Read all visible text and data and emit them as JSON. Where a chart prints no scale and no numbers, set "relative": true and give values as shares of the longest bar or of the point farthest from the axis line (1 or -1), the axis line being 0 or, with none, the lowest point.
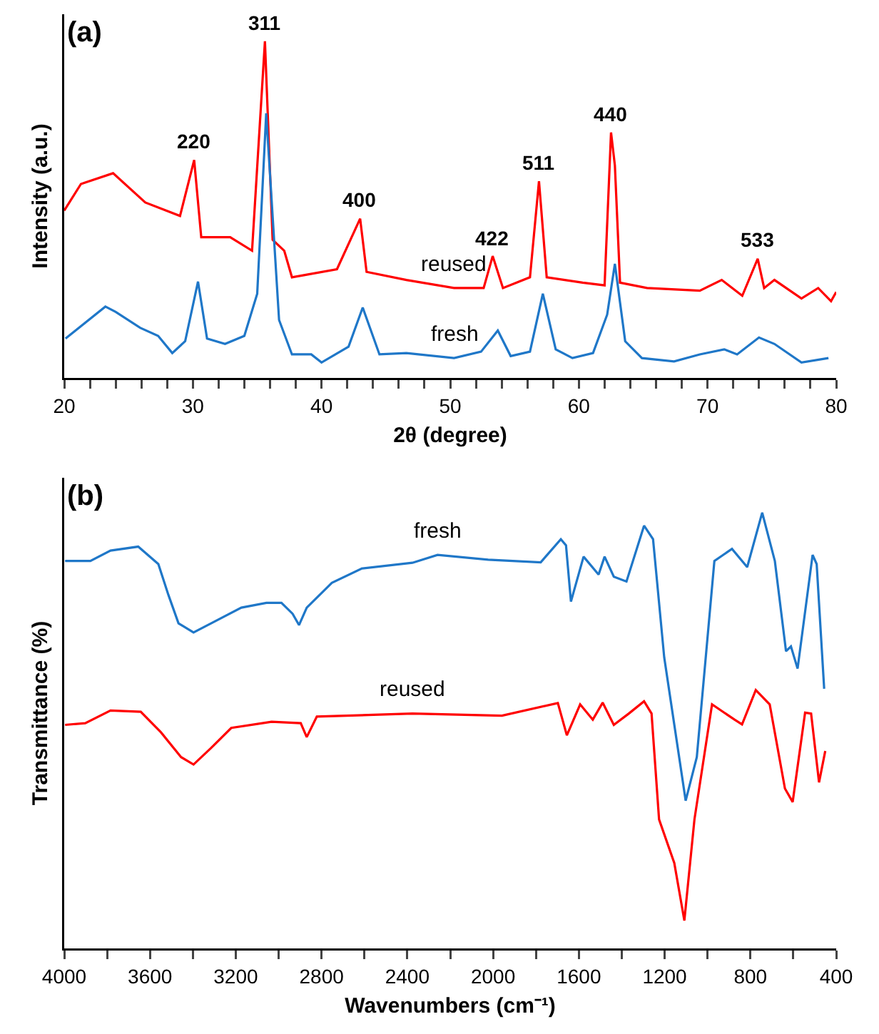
{
  "chart_data": [
    {
      "type": "line",
      "title": "(a)",
      "xlabel": "2θ (degree)",
      "ylabel": "Intensity (a.u.)",
      "relative": true,
      "xlim": [
        20,
        80
      ],
      "xticks": [
        20,
        {
          "value": 22,
          "label": null
        },
        {
          "value": 24,
          "label": null
        },
        {
          "value": 26,
          "label": null
        },
        {
          "value": 28,
          "label": null
        },
        30,
        {
          "value": 32,
          "label": null
        },
        {
          "value": 34,
          "label": null
        },
        {
          "value": 36,
          "label": null
        },
        {
          "value": 38,
          "label": null
        },
        40,
        {
          "value": 42,
          "label": null
        },
        {
          "value": 44,
          "label": null
        },
        {
          "value": 46,
          "label": null
        },
        {
          "value": 48,
          "label": null
        },
        50,
        {
          "value": 52,
          "label": null
        },
        {
          "value": 54,
          "label": null
        },
        {
          "value": 56,
          "label": null
        },
        {
          "value": 58,
          "label": null
        },
        60,
        {
          "value": 62,
          "label": null
        },
        {
          "value": 64,
          "label": null
        },
        {
          "value": 66,
          "label": null
        },
        {
          "value": 68,
          "label": null
        },
        70,
        {
          "value": 72,
          "label": null
        },
        {
          "value": 74,
          "label": null
        },
        {
          "value": 76,
          "label": null
        },
        {
          "value": 78,
          "label": null
        },
        80
      ],
      "grid": false,
      "legend": false,
      "marker": "none",
      "line_style": "solid",
      "tick_labels": "x",
      "annotations": [
        {
          "text": "220",
          "x": 30.1,
          "y": 0.647
        },
        {
          "text": "311",
          "x": 35.6,
          "y": 1.0
        },
        {
          "text": "400",
          "x": 43.0,
          "y": 0.473
        },
        {
          "text": "422",
          "x": 53.3,
          "y": 0.362
        },
        {
          "text": "511",
          "x": 56.9,
          "y": 0.584
        },
        {
          "text": "440",
          "x": 62.5,
          "y": 0.729
        },
        {
          "text": "533",
          "x": 73.9,
          "y": 0.354
        }
      ],
      "series": [
        {
          "name": "reused",
          "color": "#ff0000",
          "x": [
            20.0,
            21.3,
            23.8,
            26.3,
            29.0,
            30.1,
            30.65,
            32.9,
            34.6,
            35.6,
            36.2,
            37.1,
            37.7,
            41.2,
            43.0,
            43.5,
            46.6,
            50.3,
            52.6,
            53.3,
            54.1,
            56.2,
            56.9,
            57.5,
            60.3,
            62.0,
            62.5,
            62.8,
            63.2,
            65.3,
            69.4,
            71.1,
            72.7,
            73.9,
            74.4,
            75.2,
            77.3,
            78.6,
            79.6,
            80.0
          ],
          "values": [
            0.497,
            0.576,
            0.608,
            0.521,
            0.481,
            0.647,
            0.418,
            0.418,
            0.378,
            1.0,
            0.41,
            0.378,
            0.299,
            0.323,
            0.473,
            0.315,
            0.291,
            0.267,
            0.267,
            0.362,
            0.267,
            0.299,
            0.584,
            0.299,
            0.283,
            0.275,
            0.729,
            0.631,
            0.283,
            0.267,
            0.259,
            0.291,
            0.244,
            0.354,
            0.267,
            0.291,
            0.236,
            0.267,
            0.228,
            0.255
          ]
        },
        {
          "name": "fresh",
          "color": "#1f77c8",
          "x": [
            20.1,
            23.2,
            24.0,
            25.9,
            27.3,
            28.4,
            29.4,
            30.4,
            31.1,
            32.5,
            34.0,
            35.0,
            35.7,
            36.7,
            37.7,
            39.2,
            40.0,
            42.1,
            43.2,
            44.5,
            46.6,
            50.3,
            52.4,
            53.7,
            54.7,
            56.2,
            57.2,
            58.2,
            59.5,
            61.1,
            62.2,
            62.8,
            63.6,
            64.9,
            67.4,
            69.4,
            71.3,
            72.3,
            74.0,
            75.2,
            77.3,
            79.4
          ],
          "values": [
            0.117,
            0.212,
            0.196,
            0.149,
            0.125,
            0.074,
            0.109,
            0.286,
            0.117,
            0.101,
            0.125,
            0.25,
            0.786,
            0.172,
            0.07,
            0.07,
            0.046,
            0.093,
            0.209,
            0.07,
            0.074,
            0.059,
            0.078,
            0.141,
            0.065,
            0.078,
            0.25,
            0.085,
            0.059,
            0.074,
            0.188,
            0.339,
            0.109,
            0.059,
            0.049,
            0.07,
            0.085,
            0.07,
            0.12,
            0.101,
            0.046,
            0.059
          ]
        }
      ]
    },
    {
      "type": "line",
      "title": "(b)",
      "xlabel": "Wavenumbers (cm⁻¹)",
      "ylabel": "Transmittance (%)",
      "relative": true,
      "xlim": [
        4000,
        400
      ],
      "xticks": [
        4000,
        {
          "value": 3800,
          "label": null
        },
        3600,
        {
          "value": 3400,
          "label": null
        },
        3200,
        {
          "value": 3000,
          "label": null
        },
        2800,
        {
          "value": 2600,
          "label": null
        },
        2400,
        {
          "value": 2200,
          "label": null
        },
        2000,
        {
          "value": 1800,
          "label": null
        },
        1600,
        {
          "value": 1400,
          "label": null
        },
        1200,
        {
          "value": 1000,
          "label": null
        },
        800,
        {
          "value": 600,
          "label": null
        },
        400
      ],
      "grid": false,
      "legend": false,
      "marker": "none",
      "line_style": "solid",
      "tick_labels": "x",
      "series": [
        {
          "name": "fresh",
          "color": "#1f77c8",
          "x": [
            3996,
            3878,
            3784,
            3655,
            3561,
            3514,
            3467,
            3397,
            3315,
            3174,
            3057,
            2987,
            2935,
            2905,
            2869,
            2752,
            2611,
            2376,
            2259,
            2023,
            1778,
            1684,
            1660,
            1637,
            1578,
            1508,
            1480,
            1437,
            1378,
            1296,
            1254,
            1202,
            1102,
            1050,
            968,
            886,
            815,
            745,
            686,
            634,
            611,
            580,
            510,
            491,
            456
          ],
          "values": [
            0.889,
            0.889,
            0.913,
            0.922,
            0.882,
            0.811,
            0.746,
            0.725,
            0.746,
            0.782,
            0.793,
            0.793,
            0.768,
            0.742,
            0.782,
            0.839,
            0.872,
            0.885,
            0.903,
            0.892,
            0.886,
            0.939,
            0.925,
            0.796,
            0.899,
            0.858,
            0.899,
            0.853,
            0.842,
            0.97,
            0.939,
            0.668,
            0.339,
            0.439,
            0.889,
            0.917,
            0.875,
            1.0,
            0.889,
            0.682,
            0.693,
            0.642,
            0.903,
            0.882,
            0.596
          ]
        },
        {
          "name": "reused",
          "color": "#ff0000",
          "x": [
            3996,
            3902,
            3784,
            3643,
            3549,
            3455,
            3397,
            3315,
            3221,
            3033,
            2897,
            2869,
            2822,
            2376,
            1959,
            1698,
            1656,
            1594,
            1535,
            1489,
            1437,
            1367,
            1296,
            1261,
            1226,
            1155,
            1108,
            1061,
            979,
            874,
            839,
            775,
            710,
            639,
            603,
            545,
            517,
            480,
            451
          ],
          "values": [
            0.513,
            0.517,
            0.546,
            0.543,
            0.496,
            0.439,
            0.422,
            0.46,
            0.506,
            0.52,
            0.517,
            0.485,
            0.532,
            0.539,
            0.534,
            0.563,
            0.489,
            0.56,
            0.525,
            0.564,
            0.513,
            0.539,
            0.567,
            0.539,
            0.296,
            0.196,
            0.064,
            0.296,
            0.56,
            0.525,
            0.514,
            0.593,
            0.56,
            0.367,
            0.336,
            0.541,
            0.539,
            0.381,
            0.453
          ]
        }
      ]
    }
  ]
}
